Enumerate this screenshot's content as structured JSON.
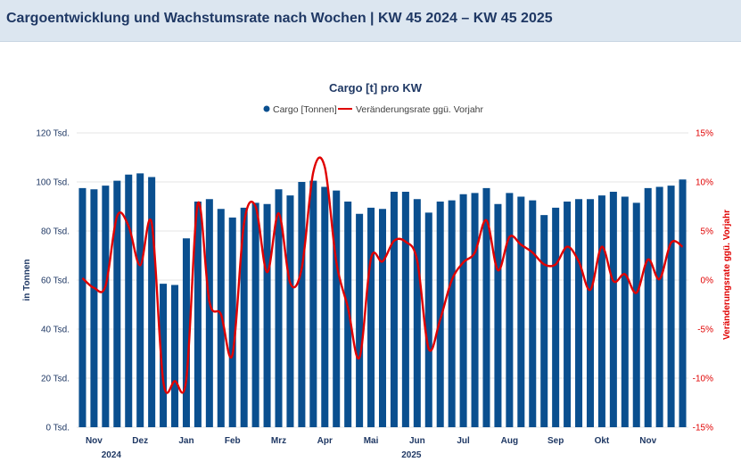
{
  "header": {
    "title": "Cargoentwicklung und Wachstumsrate nach Wochen | KW 45 2024 – KW 45 2025"
  },
  "colors": {
    "bar": "#0a4f8f",
    "line": "#e00000",
    "grid": "#e6e6e6",
    "header_bg": "#dce6f0",
    "title": "#1f3864"
  },
  "chart_data": {
    "type": "bar+line",
    "title": "Cargo [t] pro KW",
    "legend": {
      "bar": "Cargo [Tonnen]",
      "line": "Veränderungsrate ggü. Vorjahr",
      "placement": "top-center"
    },
    "ylabel_left": "in Tonnen",
    "ylabel_right": "Veränderungsrate ggü. Vorjahr",
    "ylim_left": [
      0,
      120
    ],
    "ylim_right": [
      -15,
      15
    ],
    "yticks_left": [
      {
        "value": 0,
        "label": "0 Tsd."
      },
      {
        "value": 20,
        "label": "20 Tsd."
      },
      {
        "value": 40,
        "label": "40 Tsd."
      },
      {
        "value": 60,
        "label": "60 Tsd."
      },
      {
        "value": 80,
        "label": "80 Tsd."
      },
      {
        "value": 100,
        "label": "100 Tsd."
      },
      {
        "value": 120,
        "label": "120 Tsd."
      }
    ],
    "yticks_right": [
      {
        "value": -15,
        "label": "-15%"
      },
      {
        "value": -10,
        "label": "-10%"
      },
      {
        "value": -5,
        "label": "-5%"
      },
      {
        "value": 0,
        "label": "0%"
      },
      {
        "value": 5,
        "label": "5%"
      },
      {
        "value": 10,
        "label": "10%"
      },
      {
        "value": 15,
        "label": "15%"
      }
    ],
    "months": [
      {
        "label": "Nov",
        "week_index": 1
      },
      {
        "label": "Dez",
        "week_index": 5
      },
      {
        "label": "Jan",
        "week_index": 9
      },
      {
        "label": "Feb",
        "week_index": 13
      },
      {
        "label": "Mrz",
        "week_index": 17
      },
      {
        "label": "Apr",
        "week_index": 21
      },
      {
        "label": "Mai",
        "week_index": 25
      },
      {
        "label": "Jun",
        "week_index": 29
      },
      {
        "label": "Jul",
        "week_index": 33
      },
      {
        "label": "Aug",
        "week_index": 37
      },
      {
        "label": "Sep",
        "week_index": 41
      },
      {
        "label": "Okt",
        "week_index": 45
      },
      {
        "label": "Nov",
        "week_index": 49
      }
    ],
    "years": [
      {
        "label": "2024",
        "week_index": 2.5
      },
      {
        "label": "2025",
        "week_index": 28.5
      }
    ],
    "unit_left": "Tsd. Tonnen",
    "unit_right": "%",
    "series": [
      {
        "name": "Cargo [Tonnen]",
        "type": "bar",
        "axis": "left",
        "values": [
          97.5,
          97,
          98.5,
          100.5,
          103,
          103.5,
          102,
          58.5,
          58,
          77,
          92,
          93,
          89,
          85.5,
          89.5,
          91.5,
          91,
          97,
          94.5,
          100,
          100.5,
          98,
          96.5,
          92,
          87,
          89.5,
          89,
          96,
          96,
          93,
          87.5,
          92,
          92.5,
          95,
          95.5,
          97.5,
          91,
          95.5,
          94,
          92.5,
          86.5,
          89.5,
          92,
          93,
          93,
          94.5,
          96,
          94,
          91.5,
          97.5,
          98,
          98.5,
          101
        ]
      },
      {
        "name": "Veränderungsrate ggü. Vorjahr",
        "type": "line",
        "axis": "right",
        "values": [
          0.2,
          -0.8,
          -0.6,
          6.5,
          5.5,
          1.5,
          5.8,
          -10.3,
          -10.3,
          -10.1,
          7.8,
          -2.2,
          -3.5,
          -7.6,
          5.8,
          7.5,
          0.8,
          6.8,
          -0.3,
          1.2,
          11,
          11.5,
          1.8,
          -2.8,
          -7.9,
          2.2,
          1.9,
          4,
          3.9,
          2,
          -7,
          -4,
          0,
          1.8,
          2.8,
          6.1,
          1,
          4.4,
          3.6,
          2.8,
          1.6,
          1.6,
          3.4,
          1.9,
          -1,
          3.4,
          -0.1,
          0.6,
          -1.3,
          2.1,
          0.1,
          3.8,
          3.4
        ]
      }
    ]
  }
}
